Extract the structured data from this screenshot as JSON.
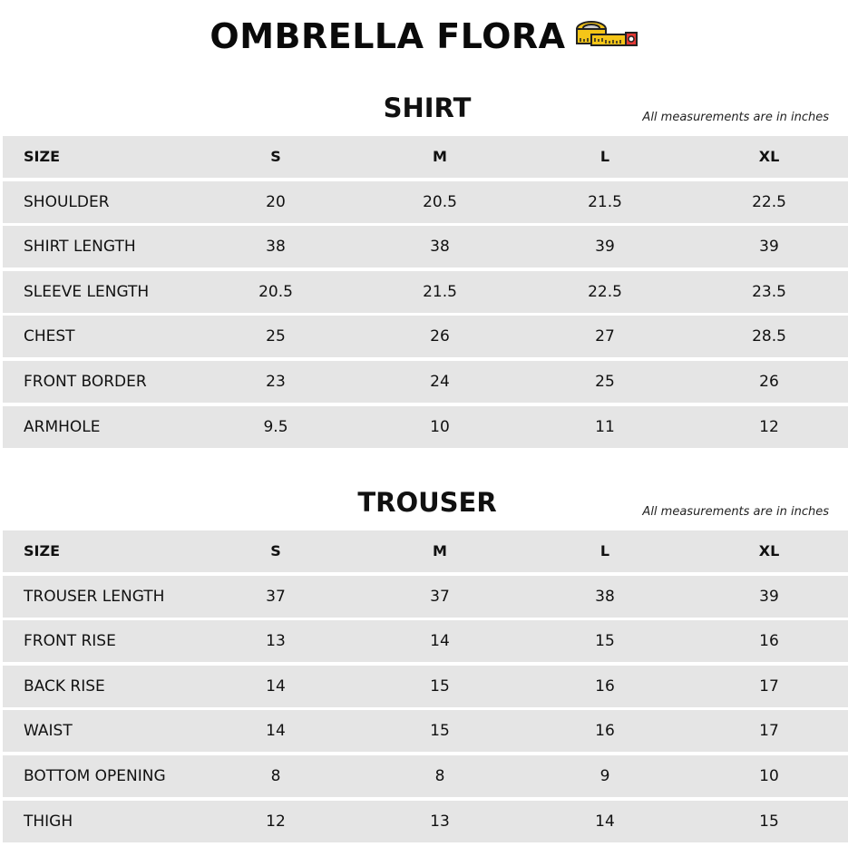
{
  "title": "OMBRELLA FLORA",
  "title_icon": "measuring-tape-icon",
  "shirt": {
    "title": "SHIRT",
    "note": "All measurements are in inches",
    "headers": [
      "SIZE",
      "S",
      "M",
      "L",
      "XL"
    ],
    "rows": [
      [
        "SHOULDER",
        "20",
        "20.5",
        "21.5",
        "22.5"
      ],
      [
        "SHIRT LENGTH",
        "38",
        "38",
        "39",
        "39"
      ],
      [
        "SLEEVE LENGTH",
        "20.5",
        "21.5",
        "22.5",
        "23.5"
      ],
      [
        "CHEST",
        "25",
        "26",
        "27",
        "28.5"
      ],
      [
        "FRONT BORDER",
        "23",
        "24",
        "25",
        "26"
      ],
      [
        "ARMHOLE",
        "9.5",
        "10",
        "11",
        "12"
      ]
    ]
  },
  "trouser": {
    "title": "TROUSER",
    "note": "All measurements are in inches",
    "headers": [
      "SIZE",
      "S",
      "M",
      "L",
      "XL"
    ],
    "rows": [
      [
        "TROUSER LENGTH",
        "37",
        "37",
        "38",
        "39"
      ],
      [
        "FRONT RISE",
        "13",
        "14",
        "15",
        "16"
      ],
      [
        "BACK RISE",
        "14",
        "15",
        "16",
        "17"
      ],
      [
        "WAIST",
        "14",
        "15",
        "16",
        "17"
      ],
      [
        "BOTTOM OPENING",
        "8",
        "8",
        "9",
        "10"
      ],
      [
        "THIGH",
        "12",
        "13",
        "14",
        "15"
      ]
    ]
  }
}
